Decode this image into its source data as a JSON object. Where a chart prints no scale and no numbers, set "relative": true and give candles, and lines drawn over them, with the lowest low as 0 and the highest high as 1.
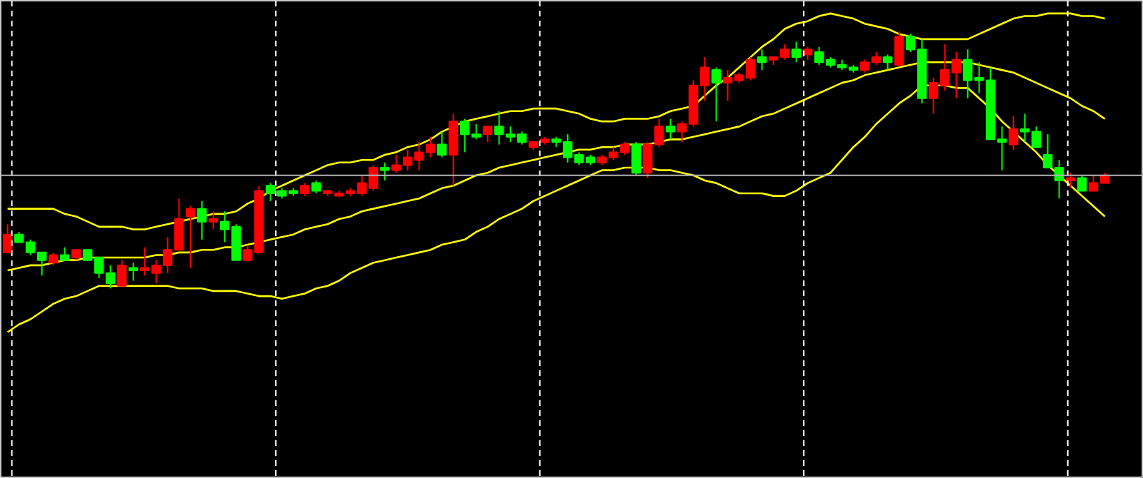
{
  "chart_data": {
    "type": "candlestick",
    "relative": true,
    "grid": false,
    "categories": [
      null,
      null,
      null,
      null,
      null,
      null,
      null,
      null,
      null,
      null,
      null,
      null,
      null,
      null,
      null,
      null,
      null,
      null,
      null,
      null,
      null,
      null,
      null,
      null,
      null,
      null,
      null,
      null,
      null,
      null,
      null,
      null,
      null,
      null,
      null,
      null,
      null,
      null,
      null,
      null,
      null,
      null,
      null,
      null,
      null,
      null,
      null,
      null,
      null,
      null,
      null,
      null,
      null,
      null,
      null,
      null,
      null,
      null,
      null,
      null,
      null,
      null,
      null,
      null,
      null,
      null,
      null,
      null,
      null,
      null,
      null,
      null,
      null,
      null,
      null,
      null,
      null,
      null,
      null,
      null,
      null,
      null,
      null,
      null,
      null,
      null,
      null,
      null,
      null,
      null,
      null,
      null,
      null,
      null,
      null,
      null,
      null
    ],
    "ohlc": [
      [
        0.14,
        0.25,
        0.14,
        0.21
      ],
      [
        0.21,
        0.22,
        0.18,
        0.18
      ],
      [
        0.18,
        0.19,
        0.13,
        0.14
      ],
      [
        0.14,
        0.14,
        0.05,
        0.11
      ],
      [
        0.1,
        0.14,
        0.09,
        0.13
      ],
      [
        0.13,
        0.16,
        0.11,
        0.11
      ],
      [
        0.12,
        0.15,
        0.11,
        0.15
      ],
      [
        0.15,
        0.15,
        0.11,
        0.11
      ],
      [
        0.12,
        0.12,
        0.04,
        0.06
      ],
      [
        0.06,
        0.09,
        0,
        0.02
      ],
      [
        0.01,
        0.11,
        0.01,
        0.09
      ],
      [
        0.08,
        0.1,
        0.03,
        0.07
      ],
      [
        0.07,
        0.16,
        0.05,
        0.08
      ],
      [
        0.06,
        0.11,
        0.02,
        0.09
      ],
      [
        0.09,
        0.2,
        0.06,
        0.15
      ],
      [
        0.15,
        0.35,
        0.15,
        0.27
      ],
      [
        0.28,
        0.32,
        0.08,
        0.31
      ],
      [
        0.31,
        0.34,
        0.19,
        0.26
      ],
      [
        0.26,
        0.3,
        0.23,
        0.27
      ],
      [
        0.26,
        0.3,
        0.18,
        0.23
      ],
      [
        0.24,
        0.25,
        0.11,
        0.11
      ],
      [
        0.11,
        0.17,
        0.11,
        0.15
      ],
      [
        0.14,
        0.4,
        0.14,
        0.38
      ],
      [
        0.4,
        0.41,
        0.34,
        0.37
      ],
      [
        0.38,
        0.39,
        0.35,
        0.36
      ],
      [
        0.38,
        0.39,
        0.36,
        0.37
      ],
      [
        0.37,
        0.41,
        0.36,
        0.4
      ],
      [
        0.41,
        0.42,
        0.37,
        0.38
      ],
      [
        0.37,
        0.38,
        0.36,
        0.38
      ],
      [
        0.36,
        0.38,
        0.36,
        0.37
      ],
      [
        0.37,
        0.39,
        0.36,
        0.38
      ],
      [
        0.37,
        0.44,
        0.36,
        0.41
      ],
      [
        0.39,
        0.48,
        0.38,
        0.47
      ],
      [
        0.47,
        0.49,
        0.42,
        0.46
      ],
      [
        0.46,
        0.52,
        0.45,
        0.48
      ],
      [
        0.48,
        0.54,
        0.46,
        0.51
      ],
      [
        0.5,
        0.57,
        0.46,
        0.53
      ],
      [
        0.53,
        0.59,
        0.51,
        0.56
      ],
      [
        0.56,
        0.61,
        0.51,
        0.52
      ],
      [
        0.52,
        0.68,
        0.4,
        0.65
      ],
      [
        0.65,
        0.66,
        0.53,
        0.6
      ],
      [
        0.6,
        0.64,
        0.58,
        0.59
      ],
      [
        0.6,
        0.63,
        0.57,
        0.63
      ],
      [
        0.63,
        0.69,
        0.56,
        0.6
      ],
      [
        0.6,
        0.63,
        0.57,
        0.59
      ],
      [
        0.6,
        0.61,
        0.56,
        0.57
      ],
      [
        0.55,
        0.57,
        0.54,
        0.57
      ],
      [
        0.57,
        0.59,
        0.56,
        0.58
      ],
      [
        0.58,
        0.59,
        0.55,
        0.57
      ],
      [
        0.57,
        0.6,
        0.49,
        0.51
      ],
      [
        0.52,
        0.53,
        0.48,
        0.49
      ],
      [
        0.51,
        0.52,
        0.48,
        0.49
      ],
      [
        0.49,
        0.52,
        0.48,
        0.51
      ],
      [
        0.51,
        0.55,
        0.5,
        0.53
      ],
      [
        0.53,
        0.57,
        0.52,
        0.56
      ],
      [
        0.56,
        0.57,
        0.44,
        0.45
      ],
      [
        0.45,
        0.57,
        0.43,
        0.56
      ],
      [
        0.56,
        0.66,
        0.55,
        0.63
      ],
      [
        0.63,
        0.66,
        0.58,
        0.61
      ],
      [
        0.61,
        0.65,
        0.57,
        0.64
      ],
      [
        0.64,
        0.81,
        0.63,
        0.79
      ],
      [
        0.79,
        0.9,
        0.73,
        0.86
      ],
      [
        0.85,
        0.86,
        0.65,
        0.8
      ],
      [
        0.8,
        0.85,
        0.73,
        0.82
      ],
      [
        0.81,
        0.84,
        0.8,
        0.83
      ],
      [
        0.82,
        0.9,
        0.81,
        0.89
      ],
      [
        0.9,
        0.93,
        0.85,
        0.88
      ],
      [
        0.89,
        0.9,
        0.87,
        0.9
      ],
      [
        0.9,
        0.95,
        0.89,
        0.93
      ],
      [
        0.93,
        0.96,
        0.88,
        0.9
      ],
      [
        0.91,
        0.94,
        0.89,
        0.93
      ],
      [
        0.92,
        0.94,
        0.87,
        0.88
      ],
      [
        0.89,
        0.9,
        0.86,
        0.87
      ],
      [
        0.87,
        0.89,
        0.85,
        0.86
      ],
      [
        0.86,
        0.87,
        0.84,
        0.85
      ],
      [
        0.85,
        0.89,
        0.84,
        0.88
      ],
      [
        0.88,
        0.92,
        0.87,
        0.9
      ],
      [
        0.9,
        0.91,
        0.85,
        0.88
      ],
      [
        0.87,
        1,
        0.87,
        0.98
      ],
      [
        0.98,
        0.99,
        0.92,
        0.93
      ],
      [
        0.93,
        0.97,
        0.72,
        0.74
      ],
      [
        0.74,
        0.82,
        0.68,
        0.8
      ],
      [
        0.79,
        0.95,
        0.77,
        0.85
      ],
      [
        0.84,
        0.92,
        0.74,
        0.89
      ],
      [
        0.89,
        0.93,
        0.74,
        0.81
      ],
      [
        0.82,
        0.88,
        0.76,
        0.81
      ],
      [
        0.81,
        0.86,
        0.58,
        0.58
      ],
      [
        0.58,
        0.63,
        0.46,
        0.57
      ],
      [
        0.56,
        0.67,
        0.54,
        0.62
      ],
      [
        0.62,
        0.68,
        0.57,
        0.61
      ],
      [
        0.61,
        0.63,
        0.55,
        0.55
      ],
      [
        0.52,
        0.6,
        0.47,
        0.47
      ],
      [
        0.47,
        0.5,
        0.35,
        0.42
      ],
      [
        0.42,
        0.45,
        0.39,
        0.43
      ],
      [
        0.43,
        0.44,
        0.38,
        0.38
      ],
      [
        0.38,
        0.44,
        0.38,
        0.41
      ],
      [
        0.41,
        0.45,
        0.41,
        0.44
      ]
    ],
    "colors": [
      "#ff0000",
      "#00ff00",
      "#00ff00",
      "#00ff00",
      "#ff0000",
      "#00ff00",
      "#ff0000",
      "#00ff00",
      "#00ff00",
      "#00ff00",
      "#ff0000",
      "#00ff00",
      "#ff0000",
      "#ff0000",
      "#ff0000",
      "#ff0000",
      "#ff0000",
      "#00ff00",
      "#ff0000",
      "#00ff00",
      "#00ff00",
      "#ff0000",
      "#ff0000",
      "#00ff00",
      "#00ff00",
      "#00ff00",
      "#ff0000",
      "#00ff00",
      "#ff0000",
      "#ff0000",
      "#ff0000",
      "#ff0000",
      "#ff0000",
      "#00ff00",
      "#ff0000",
      "#ff0000",
      "#ff0000",
      "#ff0000",
      "#00ff00",
      "#ff0000",
      "#00ff00",
      "#00ff00",
      "#ff0000",
      "#00ff00",
      "#00ff00",
      "#00ff00",
      "#ff0000",
      "#ff0000",
      "#00ff00",
      "#00ff00",
      "#00ff00",
      "#00ff00",
      "#ff0000",
      "#ff0000",
      "#ff0000",
      "#00ff00",
      "#ff0000",
      "#ff0000",
      "#00ff00",
      "#ff0000",
      "#ff0000",
      "#ff0000",
      "#00ff00",
      "#ff0000",
      "#ff0000",
      "#ff0000",
      "#00ff00",
      "#ff0000",
      "#ff0000",
      "#00ff00",
      "#ff0000",
      "#00ff00",
      "#00ff00",
      "#00ff00",
      "#00ff00",
      "#ff0000",
      "#ff0000",
      "#00ff00",
      "#ff0000",
      "#00ff00",
      "#00ff00",
      "#ff0000",
      "#ff0000",
      "#ff0000",
      "#00ff00",
      "#00ff00",
      "#00ff00",
      "#00ff00",
      "#ff0000",
      "#00ff00",
      "#00ff00",
      "#00ff00",
      "#00ff00",
      "#ff0000",
      "#00ff00",
      "#ff0000",
      "#ff0000"
    ],
    "series": [
      {
        "type": "line",
        "color": "#ffff00",
        "values": [
          0.31,
          0.31,
          0.31,
          0.31,
          0.31,
          0.29,
          0.28,
          0.26,
          0.24,
          0.24,
          0.24,
          0.23,
          0.23,
          0.24,
          0.25,
          0.26,
          0.27,
          0.28,
          0.29,
          0.29,
          0.3,
          0.33,
          0.35,
          0.38,
          0.4,
          0.42,
          0.44,
          0.46,
          0.48,
          0.49,
          0.49,
          0.5,
          0.5,
          0.52,
          0.53,
          0.55,
          0.56,
          0.58,
          0.61,
          0.63,
          0.65,
          0.66,
          0.67,
          0.68,
          0.69,
          0.69,
          0.7,
          0.7,
          0.7,
          0.69,
          0.68,
          0.66,
          0.65,
          0.65,
          0.66,
          0.66,
          0.66,
          0.67,
          0.69,
          0.7,
          0.71,
          0.75,
          0.79,
          0.82,
          0.86,
          0.9,
          0.94,
          0.97,
          1.01,
          1.03,
          1.04,
          1.06,
          1.07,
          1.06,
          1.05,
          1.03,
          1.02,
          1.01,
          0.99,
          0.98,
          0.97,
          0.97,
          0.97,
          0.97,
          0.97,
          0.99,
          1.01,
          1.03,
          1.05,
          1.06,
          1.06,
          1.07,
          1.07,
          1.07,
          1.06,
          1.06,
          1.05
        ]
      },
      {
        "type": "line",
        "color": "#ffff00",
        "values": [
          0.07,
          0.08,
          0.09,
          0.09,
          0.1,
          0.11,
          0.11,
          0.12,
          0.12,
          0.12,
          0.12,
          0.12,
          0.12,
          0.13,
          0.13,
          0.14,
          0.14,
          0.15,
          0.15,
          0.16,
          0.16,
          0.17,
          0.18,
          0.19,
          0.2,
          0.21,
          0.23,
          0.24,
          0.25,
          0.27,
          0.28,
          0.3,
          0.31,
          0.32,
          0.33,
          0.34,
          0.35,
          0.37,
          0.39,
          0.4,
          0.42,
          0.44,
          0.45,
          0.47,
          0.48,
          0.49,
          0.5,
          0.51,
          0.52,
          0.53,
          0.54,
          0.54,
          0.55,
          0.55,
          0.56,
          0.56,
          0.56,
          0.57,
          0.58,
          0.58,
          0.59,
          0.6,
          0.61,
          0.62,
          0.63,
          0.65,
          0.67,
          0.68,
          0.7,
          0.72,
          0.74,
          0.76,
          0.78,
          0.8,
          0.81,
          0.83,
          0.84,
          0.85,
          0.86,
          0.87,
          0.88,
          0.88,
          0.88,
          0.88,
          0.88,
          0.87,
          0.86,
          0.85,
          0.84,
          0.82,
          0.8,
          0.78,
          0.76,
          0.74,
          0.71,
          0.69,
          0.66
        ]
      },
      {
        "type": "line",
        "color": "#ffff00",
        "values": [
          -0.17,
          -0.14,
          -0.12,
          -0.09,
          -0.06,
          -0.04,
          -0.03,
          -0.01,
          0.01,
          0.01,
          0.01,
          0.01,
          0.01,
          0.01,
          0.01,
          0,
          0,
          0,
          -0.01,
          -0.01,
          -0.01,
          -0.02,
          -0.03,
          -0.03,
          -0.04,
          -0.03,
          -0.02,
          0,
          0.01,
          0.03,
          0.06,
          0.08,
          0.1,
          0.11,
          0.12,
          0.13,
          0.14,
          0.15,
          0.17,
          0.18,
          0.19,
          0.22,
          0.24,
          0.27,
          0.29,
          0.31,
          0.34,
          0.36,
          0.38,
          0.4,
          0.42,
          0.44,
          0.46,
          0.46,
          0.47,
          0.47,
          0.47,
          0.46,
          0.46,
          0.45,
          0.44,
          0.42,
          0.41,
          0.39,
          0.37,
          0.37,
          0.37,
          0.36,
          0.36,
          0.38,
          0.41,
          0.43,
          0.45,
          0.5,
          0.55,
          0.59,
          0.64,
          0.68,
          0.72,
          0.75,
          0.79,
          0.79,
          0.79,
          0.78,
          0.78,
          0.74,
          0.7,
          0.65,
          0.61,
          0.57,
          0.53,
          0.48,
          0.44,
          0.4,
          0.36,
          0.32,
          0.28
        ]
      }
    ],
    "ref_lines": [
      {
        "axis": "y",
        "value": 0.44,
        "color": "#b4b4b4"
      }
    ]
  }
}
